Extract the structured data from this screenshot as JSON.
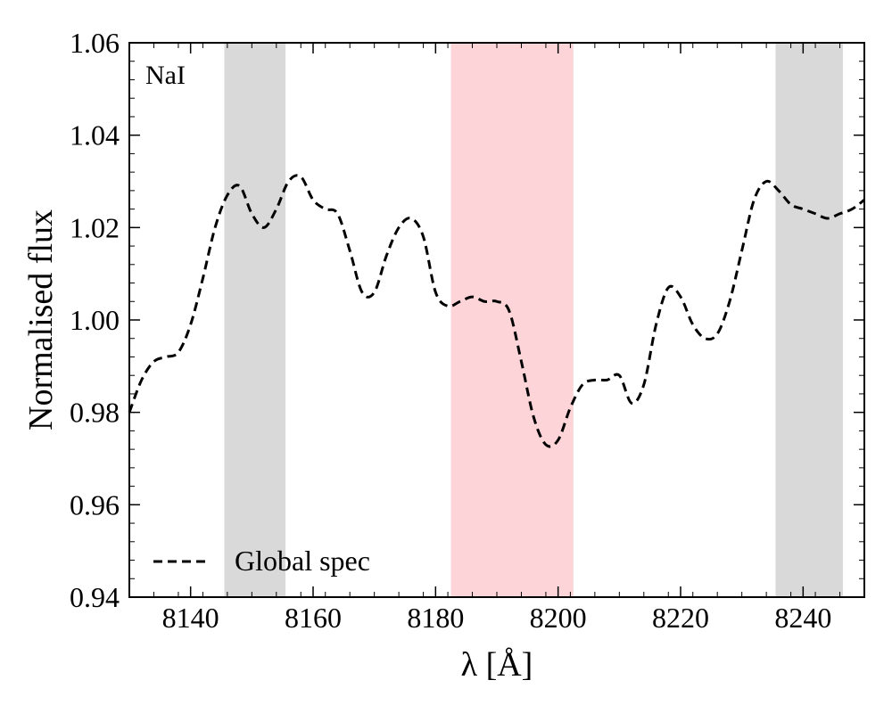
{
  "chart_data": {
    "type": "line",
    "xlabel": "λ [Å]",
    "ylabel": "Normalised flux",
    "xlim": [
      8130,
      8250
    ],
    "ylim": [
      0.94,
      1.06
    ],
    "x_ticks": [
      8140,
      8160,
      8180,
      8200,
      8220,
      8240
    ],
    "y_ticks": [
      0.94,
      0.96,
      0.98,
      1.0,
      1.02,
      1.04,
      1.06
    ],
    "y_tick_labels": [
      "0.94",
      "0.96",
      "0.98",
      "1.00",
      "1.02",
      "1.04",
      "1.06"
    ],
    "grid": false,
    "annotation": "NaI",
    "legend_position": "bottom-left",
    "bands": [
      {
        "x0": 8145.5,
        "x1": 8155.5,
        "color": "#d9d9d9"
      },
      {
        "x0": 8182.5,
        "x1": 8202.5,
        "color": "#fdd5d8"
      },
      {
        "x0": 8235.5,
        "x1": 8246.5,
        "color": "#d9d9d9"
      }
    ],
    "series": [
      {
        "name": "Global spec",
        "color": "#000000",
        "style": "dashed",
        "x": [
          8130,
          8132,
          8134,
          8136,
          8138,
          8140,
          8142,
          8144,
          8146,
          8148,
          8150,
          8152,
          8154,
          8156,
          8158,
          8160,
          8162,
          8164,
          8166,
          8168,
          8170,
          8172,
          8174,
          8176,
          8178,
          8180,
          8182,
          8184,
          8186,
          8188,
          8190,
          8192,
          8194,
          8196,
          8198,
          8200,
          8202,
          8204,
          8206,
          8208,
          8210,
          8212,
          8214,
          8216,
          8218,
          8220,
          8222,
          8224,
          8226,
          8228,
          8230,
          8232,
          8234,
          8236,
          8238,
          8240,
          8242,
          8244,
          8246,
          8248,
          8250
        ],
        "y": [
          0.98,
          0.987,
          0.991,
          0.992,
          0.993,
          0.999,
          1.009,
          1.02,
          1.027,
          1.029,
          1.023,
          1.02,
          1.024,
          1.03,
          1.031,
          1.026,
          1.024,
          1.023,
          1.015,
          1.006,
          1.006,
          1.014,
          1.02,
          1.022,
          1.018,
          1.006,
          1.003,
          1.004,
          1.005,
          1.004,
          1.004,
          1.002,
          0.991,
          0.979,
          0.973,
          0.974,
          0.981,
          0.986,
          0.987,
          0.987,
          0.988,
          0.982,
          0.986,
          0.999,
          1.007,
          1.005,
          0.999,
          0.996,
          0.997,
          1.004,
          1.015,
          1.026,
          1.03,
          1.028,
          1.025,
          1.024,
          1.023,
          1.022,
          1.023,
          1.024,
          1.026
        ]
      }
    ]
  }
}
